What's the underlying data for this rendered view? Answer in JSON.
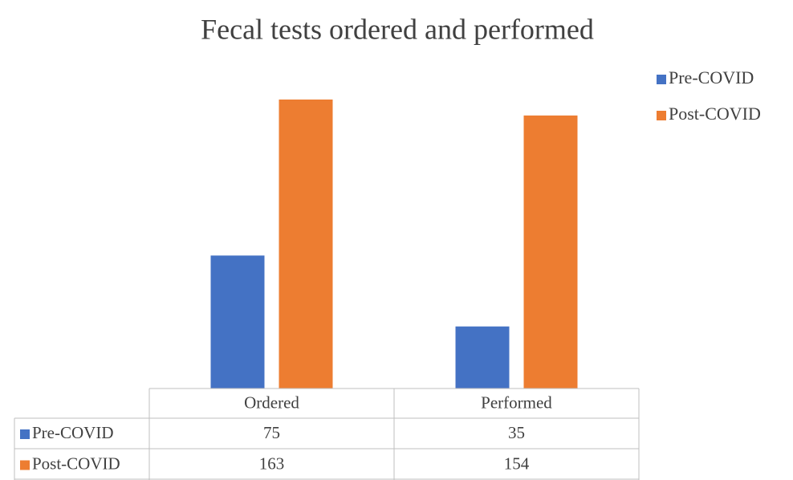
{
  "chart_data": {
    "type": "bar",
    "title": "Fecal tests ordered and performed",
    "categories": [
      "Ordered",
      "Performed"
    ],
    "series": [
      {
        "name": "Pre-COVID",
        "color": "#4472c4",
        "values": [
          75,
          35
        ]
      },
      {
        "name": "Post-COVID",
        "color": "#ed7d31",
        "values": [
          163,
          154
        ]
      }
    ],
    "legend": "top-right",
    "data_table": true
  }
}
